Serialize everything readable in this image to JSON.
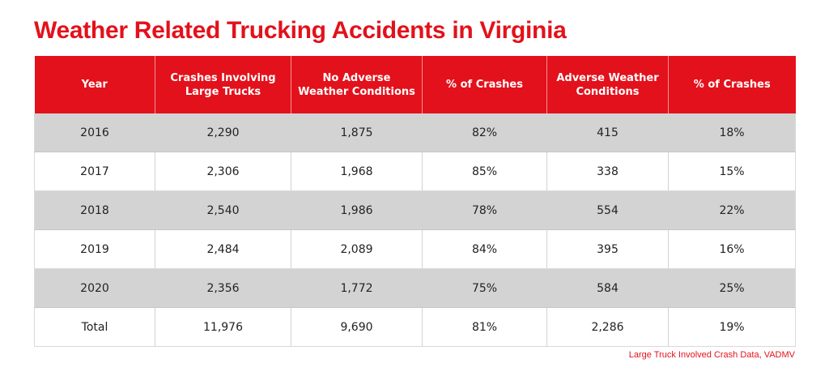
{
  "colors": {
    "accent": "#e3111b",
    "header_bg": "#e3111b",
    "stripe": "#d3d3d3"
  },
  "chart_data": {
    "type": "table",
    "title": "Weather Related Trucking Accidents in Virginia",
    "columns": [
      "Year",
      "Crashes Involving Large Trucks",
      "No Adverse Weather Conditions",
      "% of Crashes",
      "Adverse Weather Conditions",
      "% of Crashes"
    ],
    "rows": [
      [
        "2016",
        "2,290",
        "1,875",
        "82%",
        "415",
        "18%"
      ],
      [
        "2017",
        "2,306",
        "1,968",
        "85%",
        "338",
        "15%"
      ],
      [
        "2018",
        "2,540",
        "1,986",
        "78%",
        "554",
        "22%"
      ],
      [
        "2019",
        "2,484",
        "2,089",
        "84%",
        "395",
        "16%"
      ],
      [
        "2020",
        "2,356",
        "1,772",
        "75%",
        "584",
        "25%"
      ],
      [
        "Total",
        "11,976",
        "9,690",
        "81%",
        "2,286",
        "19%"
      ]
    ],
    "source": "Large Truck Involved Crash Data, VADMV"
  }
}
